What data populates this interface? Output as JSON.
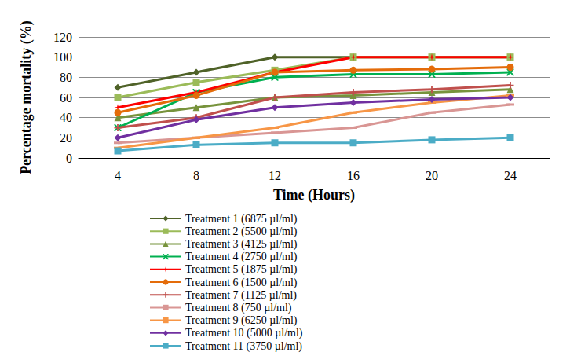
{
  "chart_data": {
    "type": "line",
    "x_label": "Time (Hours)",
    "y_label": "Percentage mortality (%)",
    "categories": [
      "4",
      "8",
      "12",
      "16",
      "20",
      "24"
    ],
    "ylim": [
      0,
      120
    ],
    "yticks": [
      0,
      20,
      40,
      60,
      80,
      100,
      120
    ],
    "grid": true,
    "legend": "bottom",
    "series": [
      {
        "name": "Treatment 1 (6875 µl/ml)",
        "color": "#4F6228",
        "marker": "diamond",
        "values": [
          70,
          85,
          100,
          100,
          100,
          100
        ]
      },
      {
        "name": "Treatment 2 (5500 µl/ml)",
        "color": "#9BBB59",
        "marker": "square",
        "values": [
          60,
          75,
          87,
          100,
          100,
          100
        ]
      },
      {
        "name": "Treatment 3 (4125 µl/ml)",
        "color": "#77933C",
        "marker": "triangle",
        "values": [
          40,
          50,
          60,
          62,
          65,
          68
        ]
      },
      {
        "name": "Treatment 4 (2750 µl/ml)",
        "color": "#00B050",
        "marker": "x",
        "values": [
          30,
          65,
          80,
          83,
          83,
          85
        ]
      },
      {
        "name": "Treatment 5 (1875 µl/ml)",
        "color": "#FF0000",
        "marker": "star",
        "values": [
          50,
          65,
          85,
          100,
          100,
          100
        ]
      },
      {
        "name": "Treatment 6 (1500 µl/ml)",
        "color": "#E46C0A",
        "marker": "circle",
        "values": [
          45,
          62,
          85,
          87,
          88,
          90
        ]
      },
      {
        "name": "Treatment 7 (1125 µl/ml)",
        "color": "#C0504D",
        "marker": "plus",
        "values": [
          30,
          40,
          60,
          65,
          68,
          72
        ]
      },
      {
        "name": "Treatment 8 (750 µl/ml)",
        "color": "#D99694",
        "marker": "dash",
        "values": [
          15,
          20,
          25,
          30,
          45,
          53
        ]
      },
      {
        "name": "Treatment 9 (6250 µl/ml)",
        "color": "#F79646",
        "marker": "dash",
        "values": [
          10,
          20,
          30,
          45,
          55,
          62
        ]
      },
      {
        "name": "Treatment 10 (5000 µl/ml)",
        "color": "#7030A0",
        "marker": "diamond",
        "values": [
          20,
          38,
          50,
          55,
          58,
          60
        ]
      },
      {
        "name": "Treatment 11 (3750 µl/ml)",
        "color": "#4BACC6",
        "marker": "square",
        "values": [
          7,
          13,
          15,
          15,
          18,
          20
        ]
      }
    ]
  }
}
